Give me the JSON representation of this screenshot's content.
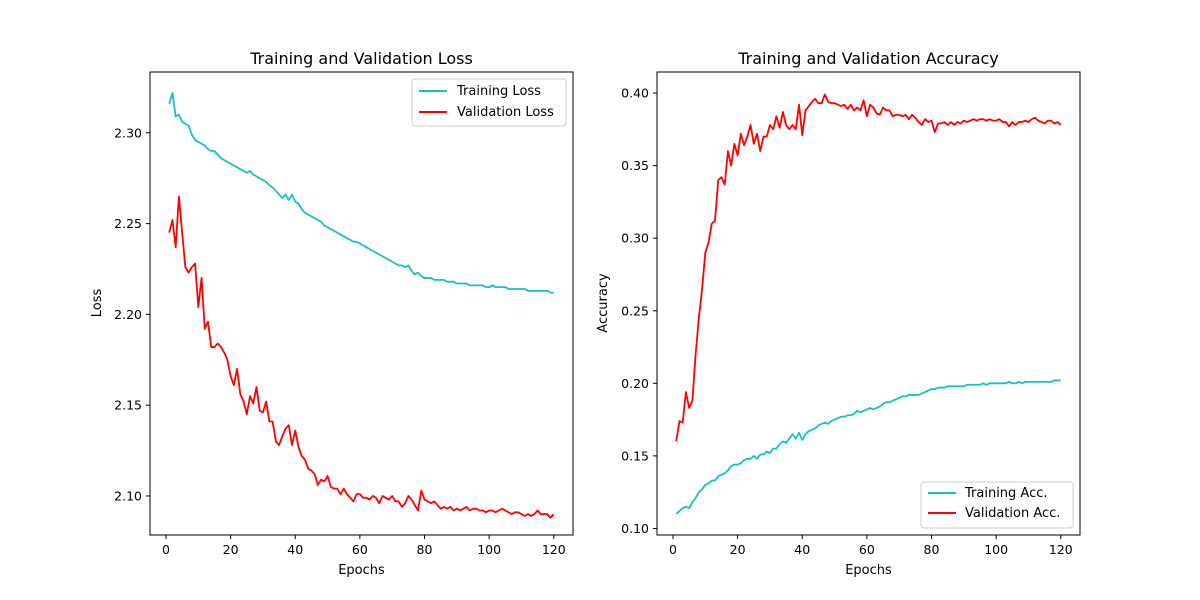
{
  "chart_data": [
    {
      "type": "line",
      "title": "Training and Validation Loss",
      "xlabel": "Epochs",
      "ylabel": "Loss",
      "xlim": [
        -4.95,
        125.95
      ],
      "ylim": [
        2.0785,
        2.3335
      ],
      "x_ticks": [
        0,
        20,
        40,
        60,
        80,
        100,
        120
      ],
      "x_tick_labels": [
        "0",
        "20",
        "40",
        "60",
        "80",
        "100",
        "120"
      ],
      "y_ticks": [
        2.1,
        2.15,
        2.2,
        2.25,
        2.3
      ],
      "y_tick_labels": [
        "2.10",
        "2.15",
        "2.20",
        "2.25",
        "2.30"
      ],
      "grid": false,
      "legend": "upper-right",
      "series": [
        {
          "name": "Training Loss",
          "color": "#17becf",
          "x": [
            1,
            2,
            3,
            4,
            5,
            6,
            7,
            8,
            9,
            10,
            11,
            12,
            13,
            14,
            15,
            16,
            17,
            18,
            19,
            20,
            21,
            22,
            23,
            24,
            25,
            26,
            27,
            28,
            29,
            30,
            31,
            32,
            33,
            34,
            35,
            36,
            37,
            38,
            39,
            40,
            41,
            42,
            43,
            44,
            45,
            46,
            47,
            48,
            49,
            50,
            51,
            52,
            53,
            54,
            55,
            56,
            57,
            58,
            59,
            60,
            61,
            62,
            63,
            64,
            65,
            66,
            67,
            68,
            69,
            70,
            71,
            72,
            73,
            74,
            75,
            76,
            77,
            78,
            79,
            80,
            81,
            82,
            83,
            84,
            85,
            86,
            87,
            88,
            89,
            90,
            91,
            92,
            93,
            94,
            95,
            96,
            97,
            98,
            99,
            100,
            101,
            102,
            103,
            104,
            105,
            106,
            107,
            108,
            109,
            110,
            111,
            112,
            113,
            114,
            115,
            116,
            117,
            118,
            119,
            120
          ],
          "values": [
            2.316,
            2.322,
            2.309,
            2.31,
            2.306,
            2.305,
            2.304,
            2.299,
            2.296,
            2.295,
            2.294,
            2.293,
            2.291,
            2.29,
            2.29,
            2.288,
            2.286,
            2.285,
            2.284,
            2.283,
            2.282,
            2.281,
            2.28,
            2.279,
            2.278,
            2.279,
            2.277,
            2.276,
            2.275,
            2.274,
            2.273,
            2.271,
            2.27,
            2.268,
            2.266,
            2.264,
            2.266,
            2.263,
            2.266,
            2.262,
            2.261,
            2.258,
            2.256,
            2.255,
            2.254,
            2.253,
            2.252,
            2.251,
            2.249,
            2.248,
            2.247,
            2.246,
            2.245,
            2.244,
            2.243,
            2.242,
            2.241,
            2.24,
            2.24,
            2.239,
            2.238,
            2.237,
            2.236,
            2.235,
            2.234,
            2.233,
            2.232,
            2.231,
            2.23,
            2.229,
            2.228,
            2.227,
            2.227,
            2.226,
            2.227,
            2.224,
            2.222,
            2.223,
            2.221,
            2.22,
            2.22,
            2.22,
            2.219,
            2.219,
            2.219,
            2.219,
            2.218,
            2.218,
            2.218,
            2.217,
            2.217,
            2.217,
            2.217,
            2.216,
            2.216,
            2.216,
            2.216,
            2.216,
            2.215,
            2.215,
            2.216,
            2.215,
            2.215,
            2.215,
            2.215,
            2.214,
            2.214,
            2.214,
            2.214,
            2.214,
            2.214,
            2.213,
            2.213,
            2.213,
            2.213,
            2.213,
            2.213,
            2.213,
            2.212,
            2.212
          ]
        },
        {
          "name": "Validation Loss",
          "color": "#ff0000",
          "x": [
            1,
            2,
            3,
            4,
            5,
            6,
            7,
            8,
            9,
            10,
            11,
            12,
            13,
            14,
            15,
            16,
            17,
            18,
            19,
            20,
            21,
            22,
            23,
            24,
            25,
            26,
            27,
            28,
            29,
            30,
            31,
            32,
            33,
            34,
            35,
            36,
            37,
            38,
            39,
            40,
            41,
            42,
            43,
            44,
            45,
            46,
            47,
            48,
            49,
            50,
            51,
            52,
            53,
            54,
            55,
            56,
            57,
            58,
            59,
            60,
            61,
            62,
            63,
            64,
            65,
            66,
            67,
            68,
            69,
            70,
            71,
            72,
            73,
            74,
            75,
            76,
            77,
            78,
            79,
            80,
            81,
            82,
            83,
            84,
            85,
            86,
            87,
            88,
            89,
            90,
            91,
            92,
            93,
            94,
            95,
            96,
            97,
            98,
            99,
            100,
            101,
            102,
            103,
            104,
            105,
            106,
            107,
            108,
            109,
            110,
            111,
            112,
            113,
            114,
            115,
            116,
            117,
            118,
            119,
            120
          ],
          "values": [
            2.245,
            2.252,
            2.237,
            2.265,
            2.245,
            2.226,
            2.223,
            2.226,
            2.228,
            2.204,
            2.22,
            2.192,
            2.196,
            2.182,
            2.182,
            2.184,
            2.182,
            2.179,
            2.175,
            2.166,
            2.161,
            2.17,
            2.156,
            2.152,
            2.145,
            2.155,
            2.151,
            2.16,
            2.147,
            2.146,
            2.152,
            2.141,
            2.141,
            2.13,
            2.128,
            2.133,
            2.137,
            2.139,
            2.128,
            2.136,
            2.127,
            2.122,
            2.12,
            2.115,
            2.114,
            2.112,
            2.106,
            2.109,
            2.108,
            2.111,
            2.105,
            2.104,
            2.104,
            2.101,
            2.104,
            2.101,
            2.099,
            2.097,
            2.101,
            2.101,
            2.099,
            2.099,
            2.098,
            2.1,
            2.099,
            2.096,
            2.1,
            2.099,
            2.098,
            2.1,
            2.097,
            2.097,
            2.094,
            2.096,
            2.1,
            2.098,
            2.095,
            2.092,
            2.103,
            2.098,
            2.097,
            2.096,
            2.097,
            2.095,
            2.093,
            2.094,
            2.093,
            2.094,
            2.092,
            2.093,
            2.092,
            2.093,
            2.094,
            2.092,
            2.093,
            2.093,
            2.092,
            2.092,
            2.091,
            2.092,
            2.092,
            2.091,
            2.092,
            2.093,
            2.092,
            2.091,
            2.09,
            2.091,
            2.091,
            2.09,
            2.089,
            2.09,
            2.089,
            2.09,
            2.092,
            2.09,
            2.09,
            2.09,
            2.088,
            2.09
          ]
        }
      ]
    },
    {
      "type": "line",
      "title": "Training and Validation Accuracy",
      "xlabel": "Epochs",
      "ylabel": "Accuracy",
      "xlim": [
        -4.95,
        125.95
      ],
      "ylim": [
        0.0955,
        0.4145
      ],
      "x_ticks": [
        0,
        20,
        40,
        60,
        80,
        100,
        120
      ],
      "x_tick_labels": [
        "0",
        "20",
        "40",
        "60",
        "80",
        "100",
        "120"
      ],
      "y_ticks": [
        0.1,
        0.15,
        0.2,
        0.25,
        0.3,
        0.35,
        0.4
      ],
      "y_tick_labels": [
        "0.10",
        "0.15",
        "0.20",
        "0.25",
        "0.30",
        "0.35",
        "0.40"
      ],
      "grid": false,
      "legend": "lower-right",
      "series": [
        {
          "name": "Training Acc.",
          "color": "#17becf",
          "x": [
            1,
            2,
            3,
            4,
            5,
            6,
            7,
            8,
            9,
            10,
            11,
            12,
            13,
            14,
            15,
            16,
            17,
            18,
            19,
            20,
            21,
            22,
            23,
            24,
            25,
            26,
            27,
            28,
            29,
            30,
            31,
            32,
            33,
            34,
            35,
            36,
            37,
            38,
            39,
            40,
            41,
            42,
            43,
            44,
            45,
            46,
            47,
            48,
            49,
            50,
            51,
            52,
            53,
            54,
            55,
            56,
            57,
            58,
            59,
            60,
            61,
            62,
            63,
            64,
            65,
            66,
            67,
            68,
            69,
            70,
            71,
            72,
            73,
            74,
            75,
            76,
            77,
            78,
            79,
            80,
            81,
            82,
            83,
            84,
            85,
            86,
            87,
            88,
            89,
            90,
            91,
            92,
            93,
            94,
            95,
            96,
            97,
            98,
            99,
            100,
            101,
            102,
            103,
            104,
            105,
            106,
            107,
            108,
            109,
            110,
            111,
            112,
            113,
            114,
            115,
            116,
            117,
            118,
            119,
            120
          ],
          "values": [
            0.11,
            0.112,
            0.114,
            0.115,
            0.114,
            0.118,
            0.121,
            0.125,
            0.127,
            0.13,
            0.131,
            0.133,
            0.133,
            0.136,
            0.137,
            0.138,
            0.14,
            0.143,
            0.144,
            0.144,
            0.145,
            0.147,
            0.148,
            0.148,
            0.15,
            0.148,
            0.151,
            0.151,
            0.153,
            0.152,
            0.155,
            0.155,
            0.158,
            0.16,
            0.159,
            0.162,
            0.165,
            0.162,
            0.166,
            0.161,
            0.165,
            0.167,
            0.168,
            0.169,
            0.171,
            0.172,
            0.173,
            0.172,
            0.174,
            0.175,
            0.176,
            0.177,
            0.177,
            0.178,
            0.178,
            0.179,
            0.181,
            0.18,
            0.181,
            0.182,
            0.183,
            0.182,
            0.183,
            0.184,
            0.186,
            0.187,
            0.187,
            0.188,
            0.189,
            0.19,
            0.191,
            0.191,
            0.192,
            0.192,
            0.192,
            0.192,
            0.193,
            0.194,
            0.195,
            0.196,
            0.196,
            0.197,
            0.197,
            0.197,
            0.198,
            0.198,
            0.198,
            0.198,
            0.198,
            0.198,
            0.199,
            0.199,
            0.199,
            0.199,
            0.199,
            0.2,
            0.199,
            0.2,
            0.2,
            0.2,
            0.2,
            0.2,
            0.2,
            0.201,
            0.2,
            0.2,
            0.201,
            0.2,
            0.201,
            0.201,
            0.201,
            0.201,
            0.201,
            0.201,
            0.201,
            0.201,
            0.201,
            0.202,
            0.202,
            0.202
          ]
        },
        {
          "name": "Validation Acc.",
          "color": "#ff0000",
          "x": [
            1,
            2,
            3,
            4,
            5,
            6,
            7,
            8,
            9,
            10,
            11,
            12,
            13,
            14,
            15,
            16,
            17,
            18,
            19,
            20,
            21,
            22,
            23,
            24,
            25,
            26,
            27,
            28,
            29,
            30,
            31,
            32,
            33,
            34,
            35,
            36,
            37,
            38,
            39,
            40,
            41,
            42,
            43,
            44,
            45,
            46,
            47,
            48,
            49,
            50,
            51,
            52,
            53,
            54,
            55,
            56,
            57,
            58,
            59,
            60,
            61,
            62,
            63,
            64,
            65,
            66,
            67,
            68,
            69,
            70,
            71,
            72,
            73,
            74,
            75,
            76,
            77,
            78,
            79,
            80,
            81,
            82,
            83,
            84,
            85,
            86,
            87,
            88,
            89,
            90,
            91,
            92,
            93,
            94,
            95,
            96,
            97,
            98,
            99,
            100,
            101,
            102,
            103,
            104,
            105,
            106,
            107,
            108,
            109,
            110,
            111,
            112,
            113,
            114,
            115,
            116,
            117,
            118,
            119,
            120
          ],
          "values": [
            0.16,
            0.174,
            0.173,
            0.194,
            0.183,
            0.188,
            0.22,
            0.245,
            0.265,
            0.29,
            0.297,
            0.31,
            0.312,
            0.34,
            0.342,
            0.337,
            0.36,
            0.35,
            0.365,
            0.357,
            0.372,
            0.364,
            0.37,
            0.378,
            0.365,
            0.372,
            0.36,
            0.37,
            0.37,
            0.378,
            0.375,
            0.384,
            0.376,
            0.387,
            0.378,
            0.375,
            0.378,
            0.375,
            0.392,
            0.371,
            0.388,
            0.391,
            0.394,
            0.396,
            0.393,
            0.393,
            0.399,
            0.394,
            0.393,
            0.393,
            0.392,
            0.391,
            0.392,
            0.389,
            0.392,
            0.388,
            0.39,
            0.388,
            0.395,
            0.384,
            0.392,
            0.39,
            0.386,
            0.385,
            0.39,
            0.388,
            0.388,
            0.384,
            0.385,
            0.385,
            0.384,
            0.385,
            0.382,
            0.385,
            0.383,
            0.38,
            0.378,
            0.382,
            0.38,
            0.381,
            0.373,
            0.379,
            0.379,
            0.38,
            0.378,
            0.38,
            0.378,
            0.38,
            0.379,
            0.381,
            0.38,
            0.381,
            0.382,
            0.381,
            0.382,
            0.382,
            0.381,
            0.382,
            0.381,
            0.381,
            0.382,
            0.38,
            0.38,
            0.377,
            0.38,
            0.378,
            0.38,
            0.38,
            0.381,
            0.38,
            0.382,
            0.383,
            0.381,
            0.38,
            0.379,
            0.381,
            0.381,
            0.379,
            0.38,
            0.378
          ]
        }
      ]
    }
  ]
}
